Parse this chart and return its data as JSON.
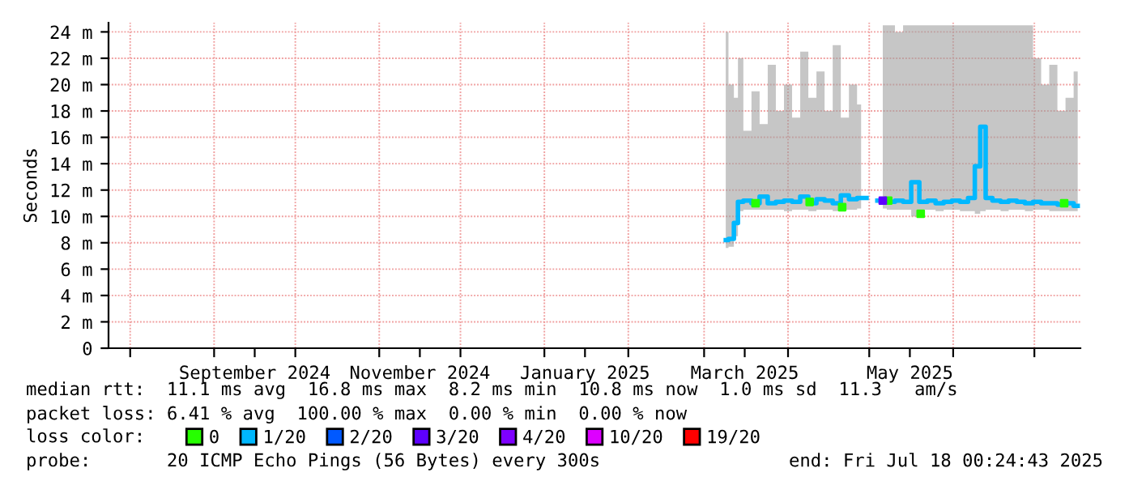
{
  "chart_data": {
    "type": "line",
    "ylabel": "Seconds",
    "legend_title": "loss color:",
    "legend": "bottom",
    "grid": true,
    "line_style": "solid",
    "xlim": [
      "2024-07-24",
      "2025-07-18"
    ],
    "xticks": [
      {
        "value": "2024-08-01",
        "label": null
      },
      {
        "value": "2024-09-01",
        "label": null
      },
      {
        "value": "2024-09-16",
        "label": "September 2024"
      },
      {
        "value": "2024-10-01",
        "label": null
      },
      {
        "value": "2024-11-01",
        "label": null
      },
      {
        "value": "2024-11-16",
        "label": "November 2024"
      },
      {
        "value": "2024-12-01",
        "label": null
      },
      {
        "value": "2025-01-01",
        "label": null
      },
      {
        "value": "2025-01-16",
        "label": "January 2025"
      },
      {
        "value": "2025-02-01",
        "label": null
      },
      {
        "value": "2025-03-01",
        "label": null
      },
      {
        "value": "2025-03-16",
        "label": "March 2025"
      },
      {
        "value": "2025-04-01",
        "label": null
      },
      {
        "value": "2025-05-01",
        "label": null
      },
      {
        "value": "2025-05-16",
        "label": "May 2025"
      },
      {
        "value": "2025-06-01",
        "label": null
      },
      {
        "value": "2025-07-01",
        "label": null
      }
    ],
    "ylim": [
      0,
      24.7
    ],
    "yticks": [
      0,
      {
        "value": 2,
        "label": "2 m"
      },
      {
        "value": 4,
        "label": "4 m"
      },
      {
        "value": 6,
        "label": "6 m"
      },
      {
        "value": 8,
        "label": "8 m"
      },
      {
        "value": 10,
        "label": "10 m"
      },
      {
        "value": 12,
        "label": "12 m"
      },
      {
        "value": 14,
        "label": "14 m"
      },
      {
        "value": 16,
        "label": "16 m"
      },
      {
        "value": 18,
        "label": "18 m"
      },
      {
        "value": 20,
        "label": "20 m"
      },
      {
        "value": 22,
        "label": "22 m"
      },
      {
        "value": 24,
        "label": "24 m"
      }
    ],
    "series": [
      {
        "name": "1/20",
        "color": "#00b8ff",
        "x": [
          "2025-03-09",
          "2025-03-11",
          "2025-03-13",
          "2025-03-14",
          "2025-03-17",
          "2025-03-20",
          "2025-03-23",
          "2025-03-26",
          "2025-03-29",
          "2025-04-01",
          "2025-04-04",
          "2025-04-07",
          "2025-04-10",
          "2025-04-13",
          "2025-04-16",
          "2025-04-19",
          "2025-04-22",
          "2025-04-25",
          "2025-04-28",
          "2025-05-02",
          "2025-05-06",
          "2025-05-09",
          "2025-05-12",
          "2025-05-15",
          "2025-05-18",
          "2025-05-21",
          "2025-05-24",
          "2025-05-27",
          "2025-05-30",
          "2025-06-02",
          "2025-06-05",
          "2025-06-08",
          "2025-06-10",
          "2025-06-12",
          "2025-06-14",
          "2025-06-17",
          "2025-06-20",
          "2025-06-23",
          "2025-06-26",
          "2025-06-29",
          "2025-07-02",
          "2025-07-05",
          "2025-07-08",
          "2025-07-11",
          "2025-07-14",
          "2025-07-17"
        ],
        "values": [
          8.2,
          8.3,
          9.5,
          11.1,
          11.2,
          11.0,
          11.5,
          11.0,
          11.1,
          11.2,
          11.1,
          11.5,
          11.0,
          11.3,
          11.2,
          11.0,
          11.6,
          11.3,
          11.4,
          null,
          11.2,
          11.1,
          11.2,
          11.1,
          12.6,
          11.1,
          11.2,
          11.0,
          11.1,
          11.2,
          11.1,
          11.4,
          13.8,
          16.8,
          11.4,
          11.2,
          11.1,
          11.2,
          11.1,
          11.0,
          11.1,
          11.0,
          11.0,
          10.9,
          11.0,
          10.8
        ],
        "lower": [
          7.6,
          7.7,
          8.5,
          10.4,
          10.5,
          10.5,
          10.5,
          10.5,
          10.5,
          10.4,
          10.5,
          10.5,
          10.4,
          10.5,
          10.5,
          10.4,
          10.5,
          10.5,
          10.6,
          null,
          10.6,
          10.5,
          10.5,
          10.5,
          10.0,
          10.5,
          10.5,
          10.4,
          10.5,
          10.5,
          10.4,
          10.4,
          10.2,
          10.4,
          10.5,
          10.5,
          10.4,
          10.5,
          10.5,
          10.4,
          10.5,
          10.5,
          10.4,
          10.4,
          10.4,
          10.4
        ],
        "upper": [
          24.0,
          20.0,
          19.0,
          22.0,
          16.5,
          19.5,
          17.0,
          21.5,
          18.0,
          20.0,
          17.5,
          22.5,
          19.0,
          21.0,
          18.0,
          23.0,
          17.5,
          20.0,
          18.5,
          null,
          24.5,
          24.5,
          24.0,
          24.5,
          24.5,
          24.5,
          24.5,
          24.5,
          24.5,
          24.5,
          24.5,
          24.5,
          24.5,
          24.5,
          24.5,
          24.5,
          24.5,
          24.5,
          24.5,
          24.5,
          22.0,
          20.0,
          21.5,
          18.0,
          19.0,
          21.0
        ]
      },
      {
        "name": "0",
        "type": "scatter",
        "marker": "square",
        "color": "#26ff00",
        "x": [
          "2025-03-20",
          "2025-04-09",
          "2025-04-21",
          "2025-05-08",
          "2025-05-20",
          "2025-07-12"
        ],
        "values": [
          11.0,
          11.1,
          10.7,
          11.2,
          10.2,
          11.0
        ]
      },
      {
        "name": "2/20",
        "type": "scatter",
        "color": "#0059ff"
      },
      {
        "name": "3/20",
        "type": "scatter",
        "marker": "square",
        "color": "#5e00ff",
        "x": [
          "2025-05-06"
        ],
        "values": [
          11.2
        ]
      },
      {
        "name": "4/20",
        "type": "scatter",
        "color": "#7e00ff"
      },
      {
        "name": "10/20",
        "type": "scatter",
        "color": "#dd00ff"
      },
      {
        "name": "19/20",
        "type": "scatter",
        "color": "#ff0000"
      }
    ],
    "annotations": [
      "median rtt:  11.1 ms avg  16.8 ms max  8.2 ms min  10.8 ms now  1.0 ms sd  11.3   am/s",
      "packet loss: 6.41 % avg  100.00 % max  0.00 % min  0.00 % now",
      "probe:       20 ICMP Echo Pings (56 Bytes) every 300s",
      "end: Fri Jul 18 00:24:43 2025"
    ]
  }
}
